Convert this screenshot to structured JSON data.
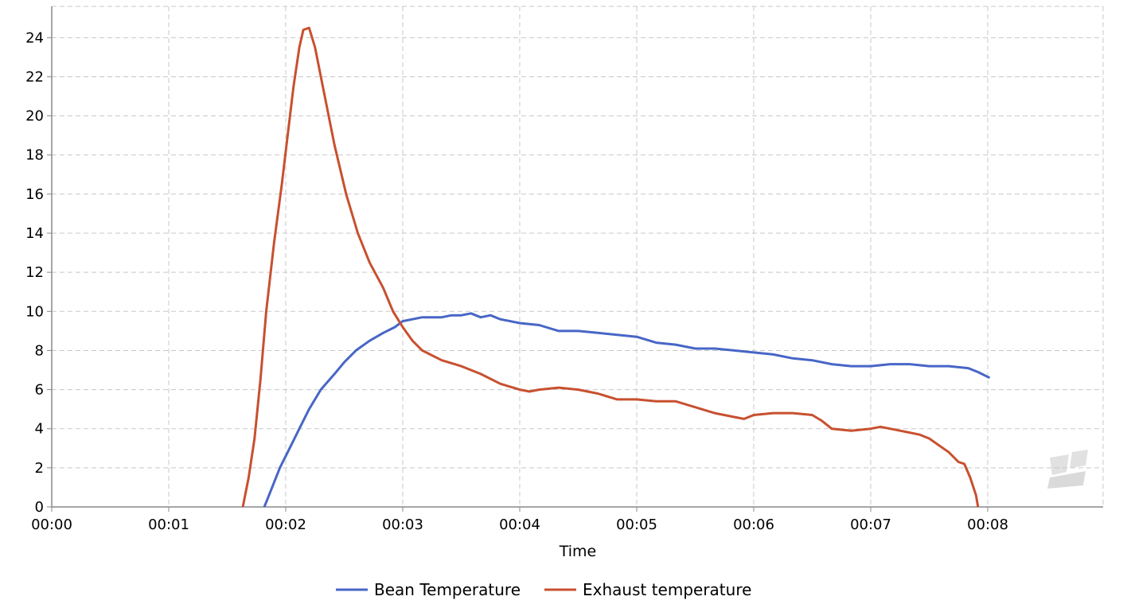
{
  "colors": {
    "bean": "#4766c6",
    "exhaust": "#c8502f",
    "grid": "#c8c8c8",
    "axis": "#888888"
  },
  "watermark": {
    "icon": "logo-watermark-icon"
  },
  "chart_data": {
    "type": "line",
    "title": "",
    "xlabel": "Time",
    "ylabel": "",
    "xlim": [
      "00:00",
      "00:09"
    ],
    "ylim": [
      0,
      25
    ],
    "x_ticks": [
      "00:00",
      "00:01",
      "00:02",
      "00:03",
      "00:04",
      "00:05",
      "00:06",
      "00:07",
      "00:08"
    ],
    "y_ticks": [
      0,
      2,
      4,
      6,
      8,
      10,
      12,
      14,
      16,
      18,
      20,
      22,
      24
    ],
    "grid": true,
    "legend": "bottom",
    "series": [
      {
        "name": "Bean Temperature",
        "color": "#4766c6",
        "points": [
          [
            "00:01:49",
            0.0
          ],
          [
            "00:01:53",
            1.0
          ],
          [
            "00:01:57",
            2.0
          ],
          [
            "00:02:02",
            3.0
          ],
          [
            "00:02:07",
            4.0
          ],
          [
            "00:02:12",
            5.0
          ],
          [
            "00:02:18",
            6.0
          ],
          [
            "00:02:25",
            6.8
          ],
          [
            "00:02:30",
            7.4
          ],
          [
            "00:02:36",
            8.0
          ],
          [
            "00:02:43",
            8.5
          ],
          [
            "00:02:50",
            8.9
          ],
          [
            "00:02:56",
            9.2
          ],
          [
            "00:03:00",
            9.5
          ],
          [
            "00:03:10",
            9.7
          ],
          [
            "00:03:20",
            9.7
          ],
          [
            "00:03:25",
            9.8
          ],
          [
            "00:03:30",
            9.8
          ],
          [
            "00:03:35",
            9.9
          ],
          [
            "00:03:40",
            9.7
          ],
          [
            "00:03:45",
            9.8
          ],
          [
            "00:03:50",
            9.6
          ],
          [
            "00:04:00",
            9.4
          ],
          [
            "00:04:10",
            9.3
          ],
          [
            "00:04:20",
            9.0
          ],
          [
            "00:04:30",
            9.0
          ],
          [
            "00:04:40",
            8.9
          ],
          [
            "00:04:50",
            8.8
          ],
          [
            "00:05:00",
            8.7
          ],
          [
            "00:05:10",
            8.4
          ],
          [
            "00:05:20",
            8.3
          ],
          [
            "00:05:30",
            8.1
          ],
          [
            "00:05:40",
            8.1
          ],
          [
            "00:05:50",
            8.0
          ],
          [
            "00:06:00",
            7.9
          ],
          [
            "00:06:10",
            7.8
          ],
          [
            "00:06:20",
            7.6
          ],
          [
            "00:06:30",
            7.5
          ],
          [
            "00:06:40",
            7.3
          ],
          [
            "00:06:50",
            7.2
          ],
          [
            "00:07:00",
            7.2
          ],
          [
            "00:07:10",
            7.3
          ],
          [
            "00:07:20",
            7.3
          ],
          [
            "00:07:30",
            7.2
          ],
          [
            "00:07:40",
            7.2
          ],
          [
            "00:07:50",
            7.1
          ],
          [
            "00:07:55",
            6.9
          ],
          [
            "00:08:01",
            6.6
          ]
        ]
      },
      {
        "name": "Exhaust temperature",
        "color": "#c8502f",
        "points": [
          [
            "00:01:38",
            0.0
          ],
          [
            "00:01:41",
            1.5
          ],
          [
            "00:01:44",
            3.5
          ],
          [
            "00:01:47",
            6.5
          ],
          [
            "00:01:50",
            10.0
          ],
          [
            "00:01:54",
            13.5
          ],
          [
            "00:01:58",
            16.5
          ],
          [
            "00:02:01",
            19.0
          ],
          [
            "00:02:04",
            21.5
          ],
          [
            "00:02:07",
            23.5
          ],
          [
            "00:02:09",
            24.4
          ],
          [
            "00:02:12",
            24.5
          ],
          [
            "00:02:15",
            23.5
          ],
          [
            "00:02:19",
            21.5
          ],
          [
            "00:02:25",
            18.5
          ],
          [
            "00:02:31",
            16.0
          ],
          [
            "00:02:37",
            14.0
          ],
          [
            "00:02:43",
            12.5
          ],
          [
            "00:02:50",
            11.2
          ],
          [
            "00:02:55",
            10.0
          ],
          [
            "00:03:00",
            9.2
          ],
          [
            "00:03:05",
            8.5
          ],
          [
            "00:03:10",
            8.0
          ],
          [
            "00:03:20",
            7.5
          ],
          [
            "00:03:30",
            7.2
          ],
          [
            "00:03:40",
            6.8
          ],
          [
            "00:03:50",
            6.3
          ],
          [
            "00:04:00",
            6.0
          ],
          [
            "00:04:05",
            5.9
          ],
          [
            "00:04:10",
            6.0
          ],
          [
            "00:04:20",
            6.1
          ],
          [
            "00:04:30",
            6.0
          ],
          [
            "00:04:40",
            5.8
          ],
          [
            "00:04:50",
            5.5
          ],
          [
            "00:05:00",
            5.5
          ],
          [
            "00:05:10",
            5.4
          ],
          [
            "00:05:20",
            5.4
          ],
          [
            "00:05:30",
            5.1
          ],
          [
            "00:05:40",
            4.8
          ],
          [
            "00:05:50",
            4.6
          ],
          [
            "00:05:55",
            4.5
          ],
          [
            "00:06:00",
            4.7
          ],
          [
            "00:06:10",
            4.8
          ],
          [
            "00:06:20",
            4.8
          ],
          [
            "00:06:30",
            4.7
          ],
          [
            "00:06:35",
            4.4
          ],
          [
            "00:06:40",
            4.0
          ],
          [
            "00:06:50",
            3.9
          ],
          [
            "00:07:00",
            4.0
          ],
          [
            "00:07:05",
            4.1
          ],
          [
            "00:07:15",
            3.9
          ],
          [
            "00:07:25",
            3.7
          ],
          [
            "00:07:30",
            3.5
          ],
          [
            "00:07:40",
            2.8
          ],
          [
            "00:07:45",
            2.3
          ],
          [
            "00:07:48",
            2.2
          ],
          [
            "00:07:51",
            1.5
          ],
          [
            "00:07:54",
            0.6
          ],
          [
            "00:07:55",
            0.0
          ]
        ]
      }
    ]
  }
}
